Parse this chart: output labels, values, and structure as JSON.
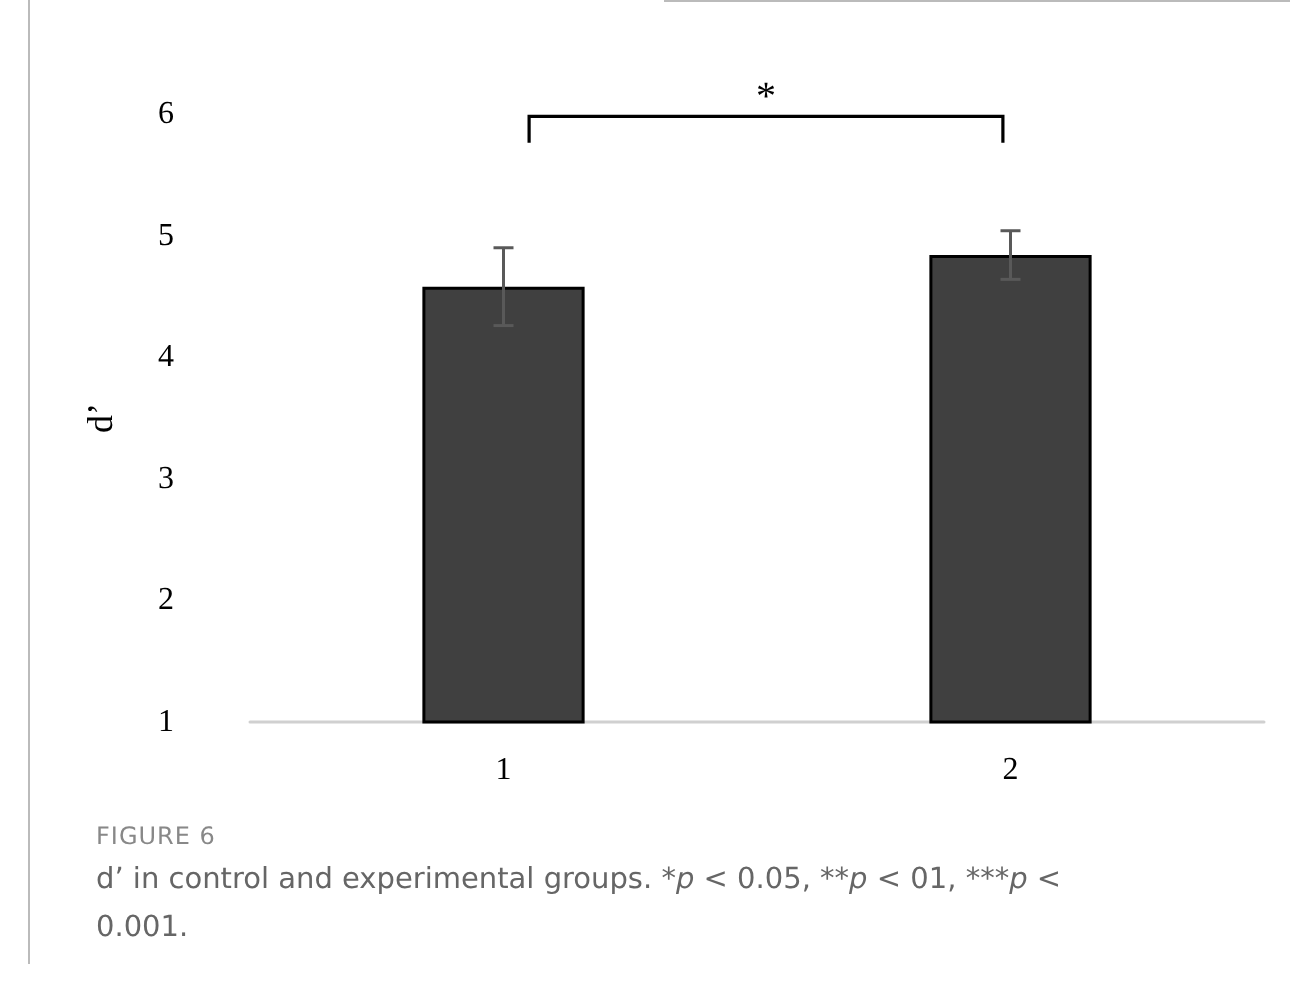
{
  "chart_data": {
    "type": "bar",
    "title": "FIGURE 6",
    "ylabel": "d’",
    "categories": [
      "1",
      "2"
    ],
    "values": [
      4.58,
      4.84
    ],
    "errors": [
      0.32,
      0.2
    ],
    "color": "#404040",
    "ylim": [
      1,
      6
    ],
    "yticks": [
      1,
      2,
      3,
      4,
      5,
      6
    ],
    "grid": false,
    "annotations": [
      "*",
      "d’ in control and experimental groups. *p < 0.05, **p < 01, ***p < 0.001."
    ]
  }
}
